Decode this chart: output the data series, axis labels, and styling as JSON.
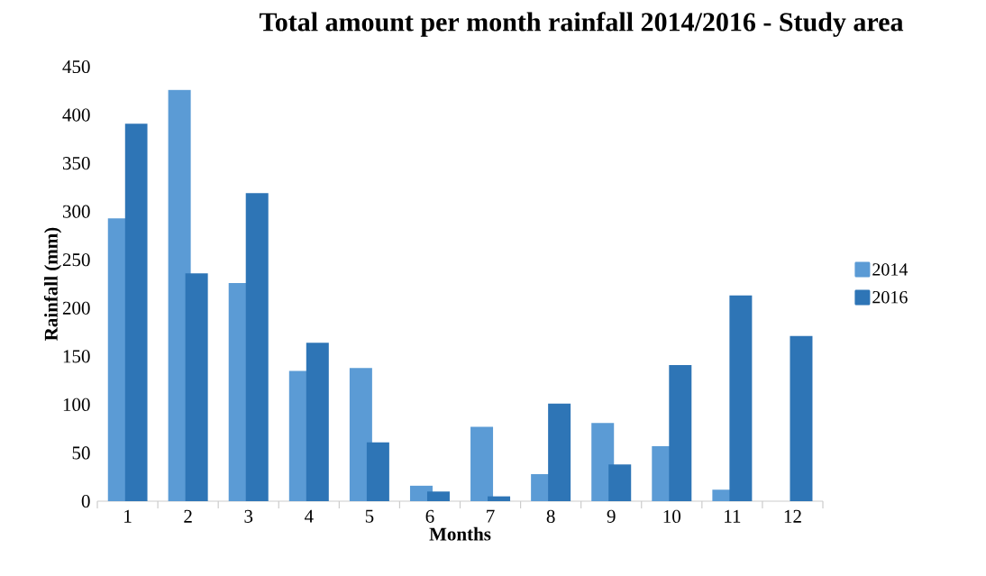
{
  "chart_data": {
    "type": "bar",
    "title": "Total amount per month rainfall 2014/2016 - Study area",
    "xlabel": "Months",
    "ylabel": "Rainfall (mm)",
    "categories": [
      "1",
      "2",
      "3",
      "4",
      "5",
      "6",
      "7",
      "8",
      "9",
      "10",
      "11",
      "12"
    ],
    "series": [
      {
        "name": "2014",
        "color": "#5b9bd5",
        "values": [
          293,
          426,
          226,
          135,
          138,
          16,
          77,
          28,
          81,
          57,
          12,
          null
        ]
      },
      {
        "name": "2016",
        "color": "#2e75b6",
        "values": [
          391,
          236,
          319,
          164,
          61,
          10,
          5,
          101,
          38,
          141,
          213,
          171
        ]
      }
    ],
    "ylim": [
      0,
      450
    ],
    "yticks": [
      0,
      50,
      100,
      150,
      200,
      250,
      300,
      350,
      400,
      450
    ],
    "grid": false,
    "legend": "right"
  }
}
